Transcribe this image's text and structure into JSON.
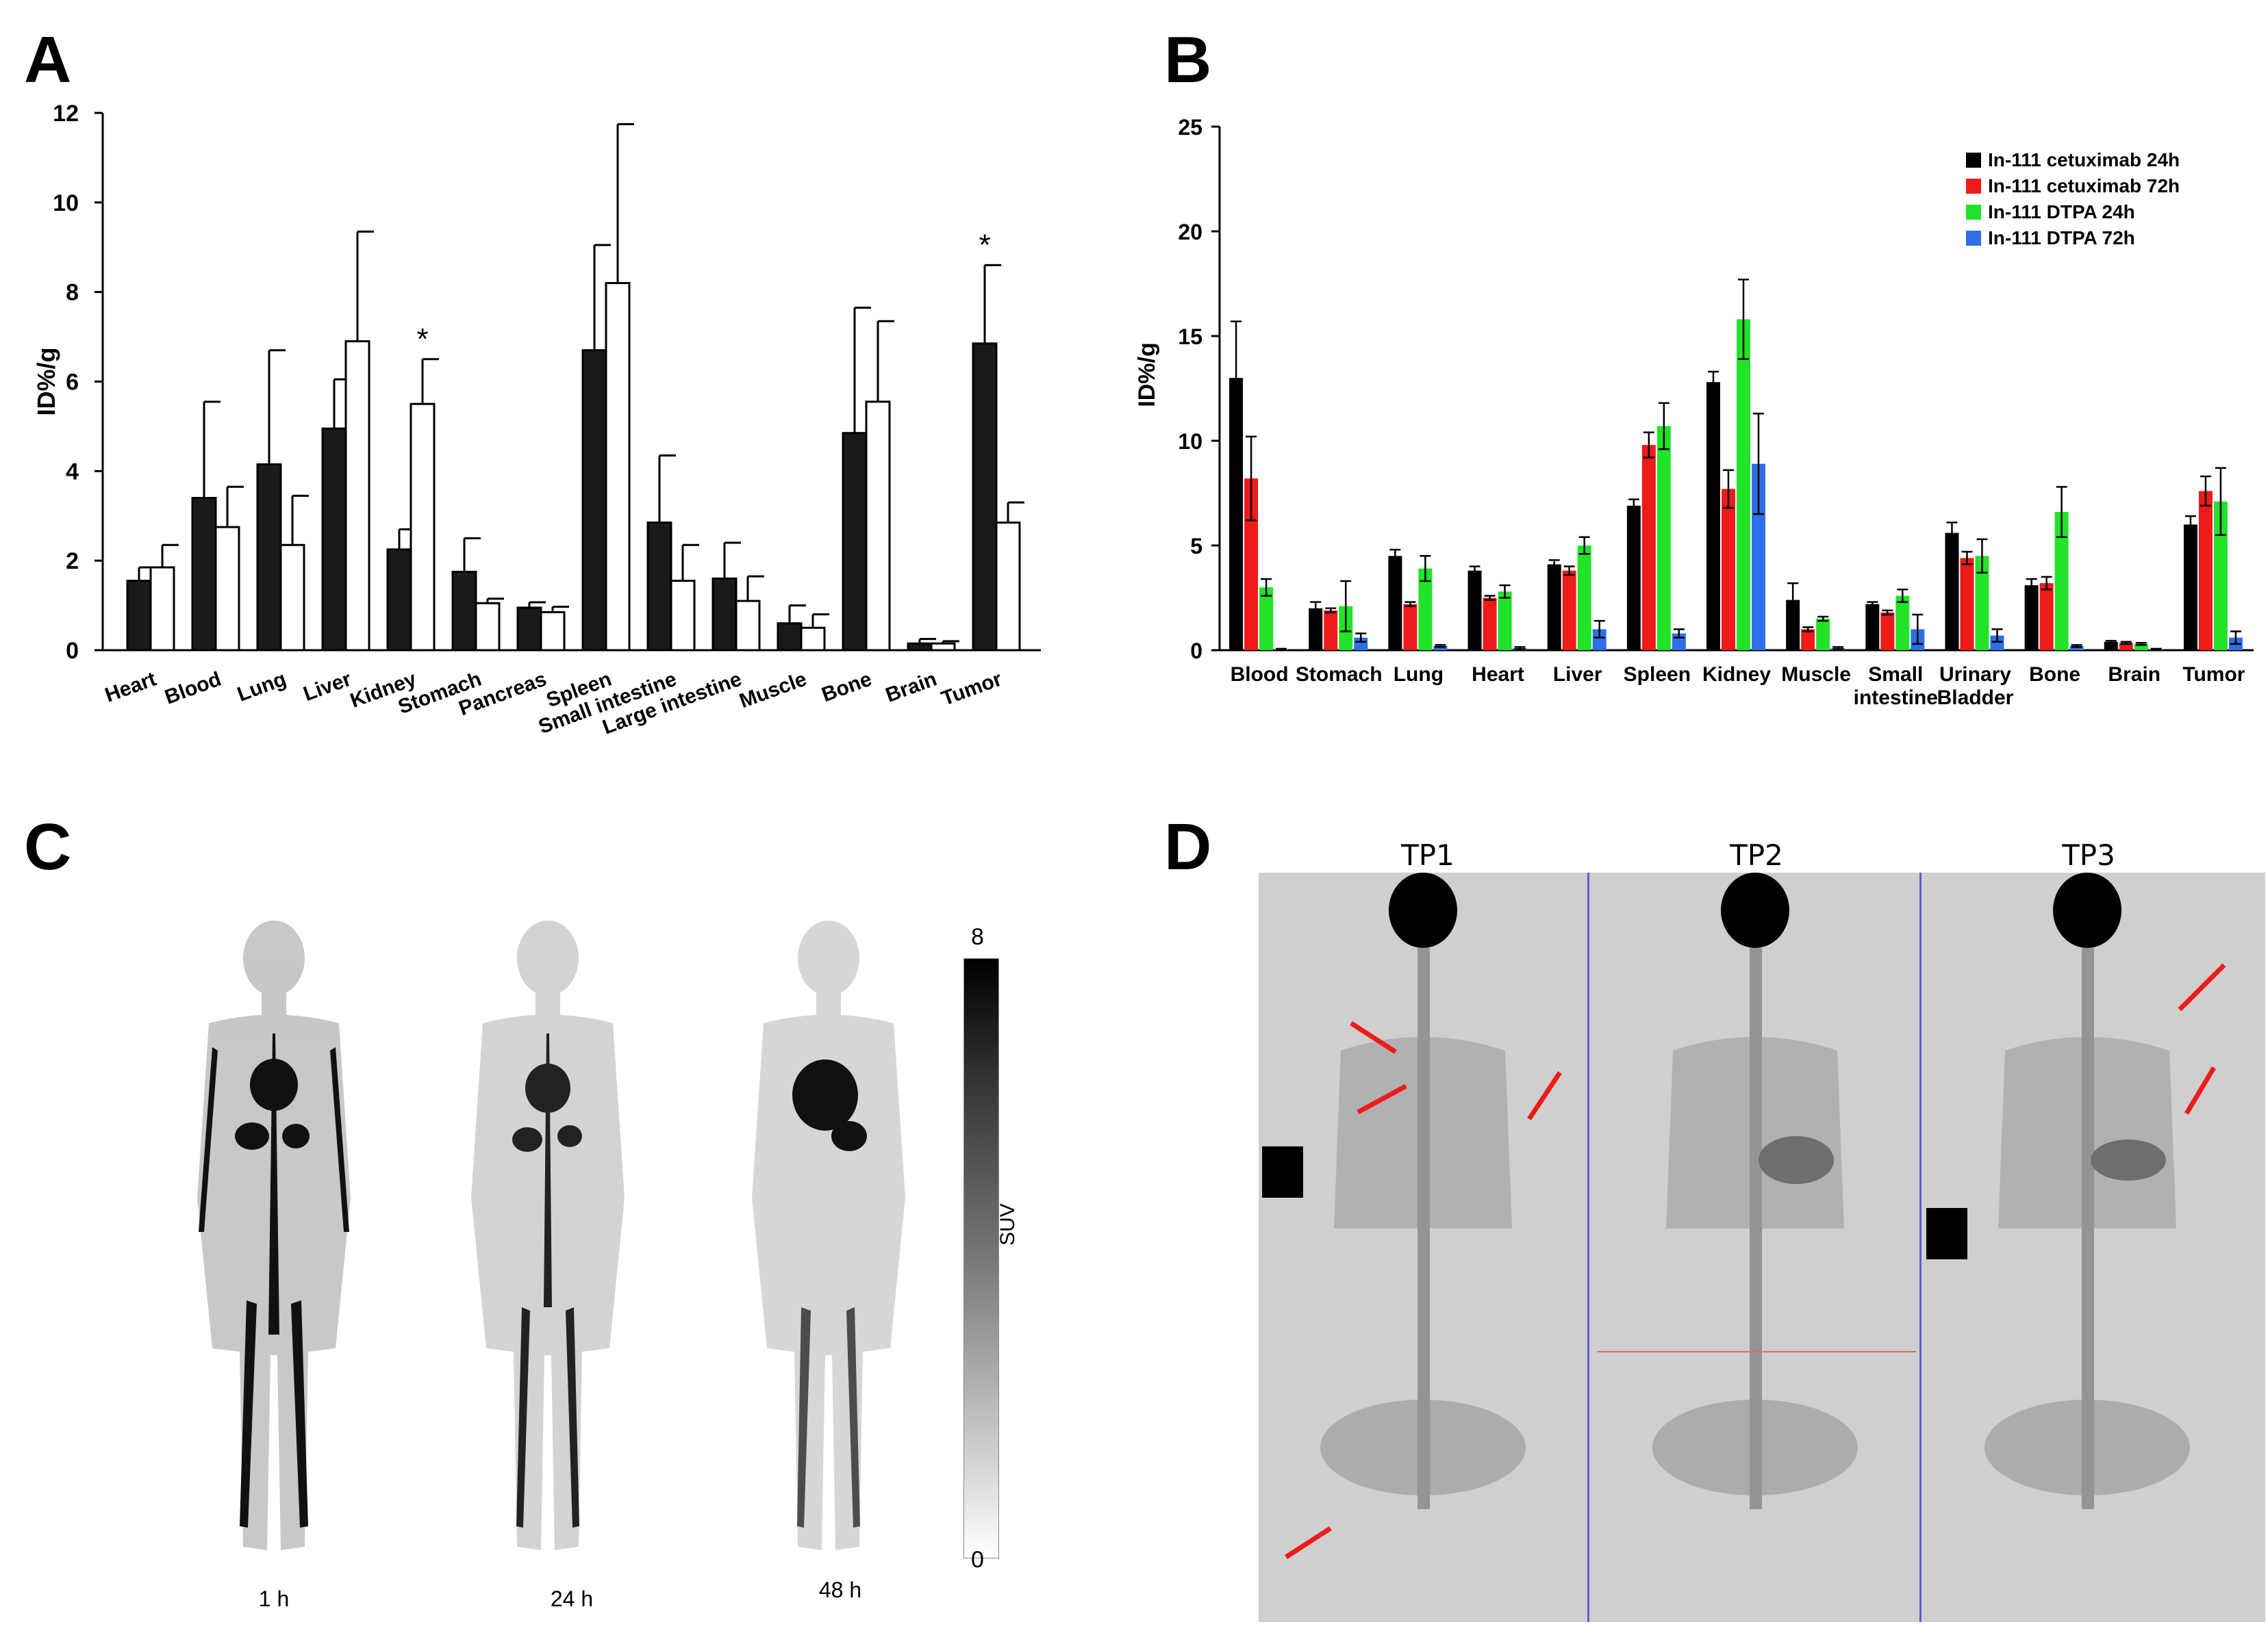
{
  "panels": {
    "a": "A",
    "b": "B",
    "c": "C",
    "d": "D"
  },
  "colors": {
    "black_bar": "#1a1a1a",
    "white_bar": "#ffffff",
    "series_red": "#ee1b1b",
    "series_green": "#22e22a",
    "series_blue": "#2d6fe8",
    "divider_blue": "#5a5fcf",
    "arrow_red": "#ee1b1b"
  },
  "chart_data": [
    {
      "id": "A",
      "type": "bar",
      "ylabel": "ID%/g",
      "ylim": [
        0,
        12
      ],
      "yticks": [
        0,
        2,
        4,
        6,
        8,
        10,
        12
      ],
      "categories": [
        "Heart",
        "Blood",
        "Lung",
        "Liver",
        "Kidney",
        "Stomach",
        "Pancreas",
        "Spleen",
        "Small intestine",
        "Large intestine",
        "Muscle",
        "Bone",
        "Brain",
        "Tumor"
      ],
      "series": [
        {
          "fill": "#1a1a1a",
          "values": [
            1.55,
            3.4,
            4.15,
            4.95,
            2.25,
            1.75,
            0.95,
            6.7,
            2.85,
            1.6,
            0.6,
            4.85,
            0.15,
            6.85
          ],
          "errors": [
            0.3,
            2.15,
            2.55,
            1.1,
            0.45,
            0.75,
            0.12,
            2.35,
            1.5,
            0.8,
            0.4,
            2.8,
            0.1,
            1.75
          ]
        },
        {
          "fill": "#ffffff",
          "values": [
            1.85,
            2.75,
            2.35,
            6.9,
            5.5,
            1.05,
            0.85,
            8.2,
            1.55,
            1.1,
            0.5,
            5.55,
            0.15,
            2.85
          ],
          "errors": [
            0.5,
            0.9,
            1.1,
            2.45,
            1.0,
            0.1,
            0.12,
            3.55,
            0.8,
            0.55,
            0.3,
            1.8,
            0.05,
            0.45
          ]
        }
      ],
      "annotations": [
        {
          "category": "Kidney",
          "series": 1,
          "text": "*"
        },
        {
          "category": "Tumor",
          "series": 0,
          "text": "*"
        }
      ]
    },
    {
      "id": "B",
      "type": "bar",
      "ylabel": "ID%/g",
      "ylim": [
        0,
        25
      ],
      "yticks": [
        0,
        5,
        10,
        15,
        20,
        25
      ],
      "legend_position": "top-right",
      "categories": [
        [
          "Blood"
        ],
        [
          "Stomach"
        ],
        [
          "Lung"
        ],
        [
          "Heart"
        ],
        [
          "Liver"
        ],
        [
          "Spleen"
        ],
        [
          "Kidney"
        ],
        [
          "Muscle"
        ],
        [
          "Small",
          "intestine"
        ],
        [
          "Urinary",
          "Bladder"
        ],
        [
          "Bone"
        ],
        [
          "Brain"
        ],
        [
          "Tumor"
        ]
      ],
      "series": [
        {
          "name": "In-111 cetuximab 24h",
          "color": "#000000",
          "values": [
            13.0,
            2.0,
            4.5,
            3.8,
            4.1,
            6.9,
            12.8,
            2.4,
            2.2,
            5.6,
            3.1,
            0.4,
            6.0
          ],
          "errors": [
            2.7,
            0.3,
            0.3,
            0.2,
            0.2,
            0.3,
            0.5,
            0.8,
            0.1,
            0.5,
            0.3,
            0.05,
            0.4
          ]
        },
        {
          "name": "In-111 cetuximab 72h",
          "color": "#ee1b1b",
          "values": [
            8.2,
            1.9,
            2.2,
            2.5,
            3.8,
            9.8,
            7.7,
            1.0,
            1.8,
            4.4,
            3.2,
            0.35,
            7.6
          ],
          "errors": [
            2.0,
            0.1,
            0.1,
            0.1,
            0.2,
            0.6,
            0.9,
            0.1,
            0.1,
            0.3,
            0.3,
            0.05,
            0.7
          ]
        },
        {
          "name": "In-111 DTPA 24h",
          "color": "#22e22a",
          "values": [
            3.0,
            2.1,
            3.9,
            2.8,
            5.0,
            10.7,
            15.8,
            1.5,
            2.6,
            4.5,
            6.6,
            0.3,
            7.1
          ],
          "errors": [
            0.4,
            1.2,
            0.6,
            0.3,
            0.4,
            1.1,
            1.9,
            0.1,
            0.3,
            0.8,
            1.2,
            0.05,
            1.6
          ]
        },
        {
          "name": "In-111 DTPA 72h",
          "color": "#2d6fe8",
          "values": [
            0.05,
            0.6,
            0.2,
            0.1,
            1.0,
            0.8,
            8.9,
            0.1,
            1.0,
            0.7,
            0.2,
            0.05,
            0.6
          ],
          "errors": [
            0.02,
            0.2,
            0.05,
            0.05,
            0.4,
            0.2,
            2.4,
            0.05,
            0.7,
            0.3,
            0.05,
            0.02,
            0.3
          ]
        }
      ]
    }
  ],
  "panel_c": {
    "timepoints": [
      "1 h",
      "24 h",
      "48 h"
    ],
    "colorbar": {
      "label": "SUV",
      "max": "8",
      "min": "0"
    }
  },
  "panel_d": {
    "timepoints": [
      "TP1",
      "TP2",
      "TP3"
    ]
  }
}
